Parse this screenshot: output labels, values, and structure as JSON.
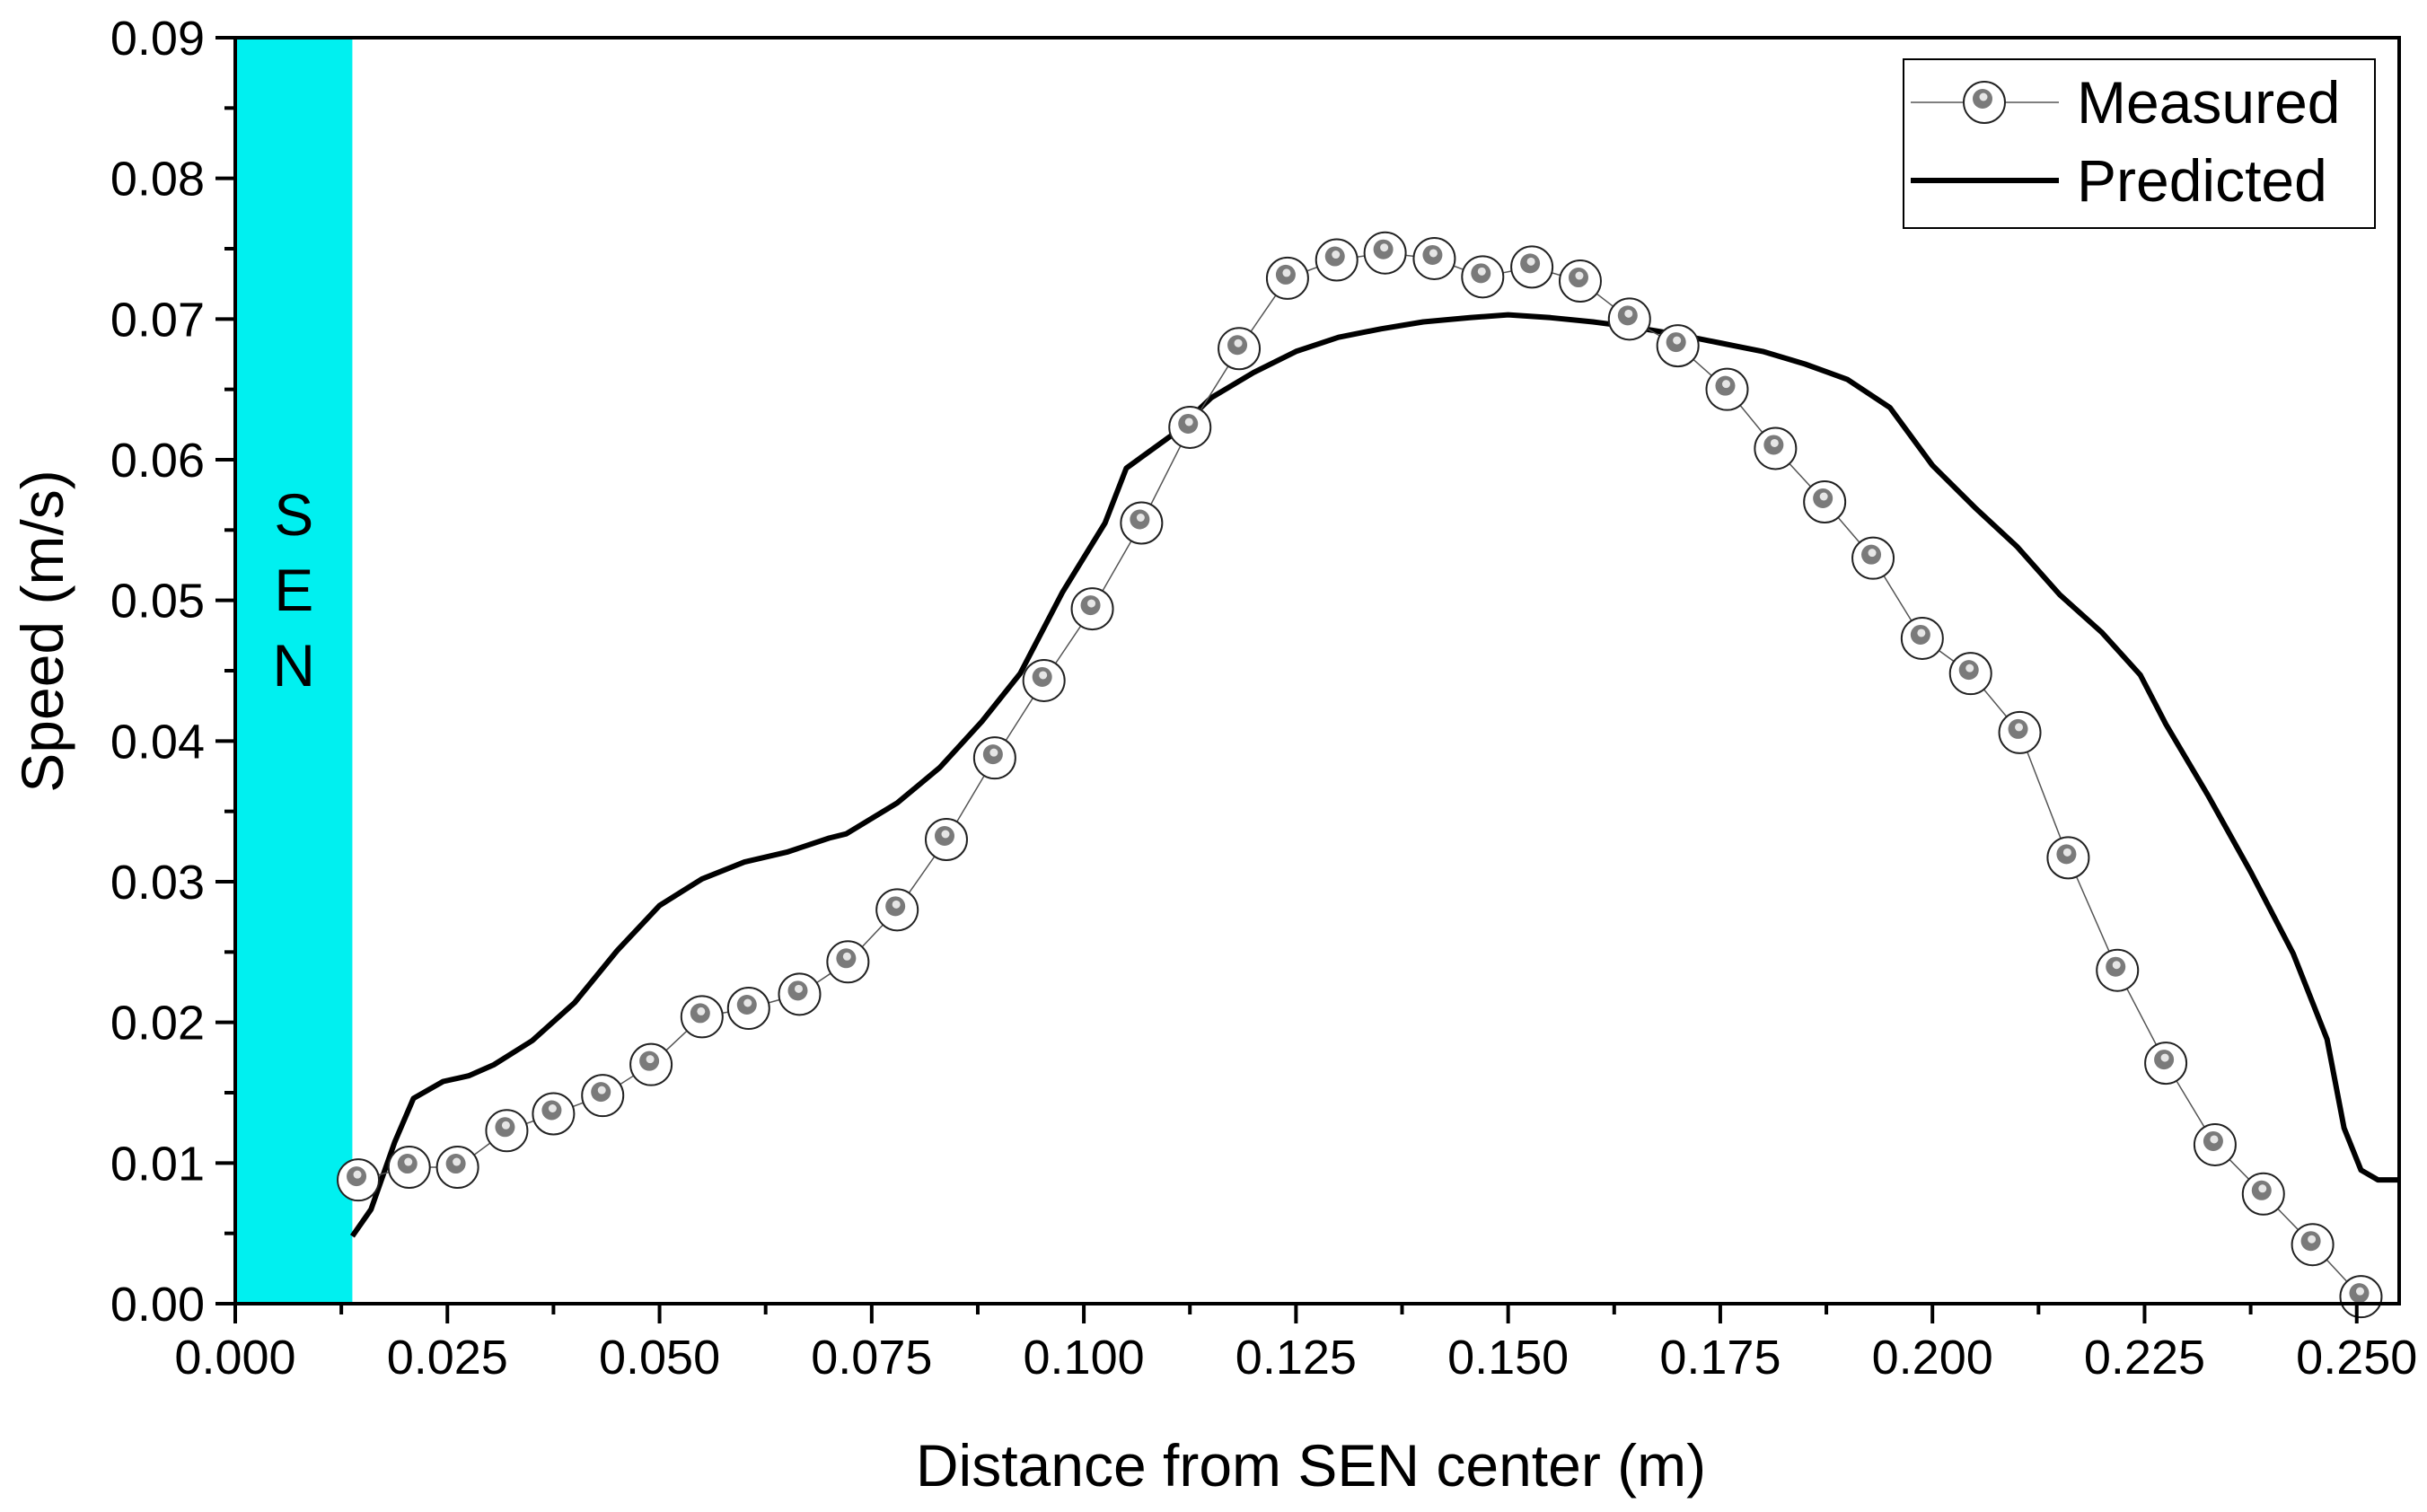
{
  "chart_data": {
    "type": "line",
    "title": "",
    "xlabel": "Distance from SEN center (m)",
    "ylabel": "Speed (m/s)",
    "xlim": [
      0.0,
      0.255
    ],
    "ylim": [
      0.0,
      0.09
    ],
    "xticks": [
      0.0,
      0.025,
      0.05,
      0.075,
      0.1,
      0.125,
      0.15,
      0.175,
      0.2,
      0.225,
      0.25
    ],
    "xtick_labels": [
      "0.000",
      "0.025",
      "0.050",
      "0.075",
      "0.100",
      "0.125",
      "0.150",
      "0.175",
      "0.200",
      "0.225",
      "0.250"
    ],
    "yticks": [
      0.0,
      0.01,
      0.02,
      0.03,
      0.04,
      0.05,
      0.06,
      0.07,
      0.08,
      0.09
    ],
    "ytick_labels": [
      "0.00",
      "0.01",
      "0.02",
      "0.03",
      "0.04",
      "0.05",
      "0.06",
      "0.07",
      "0.08",
      "0.09"
    ],
    "legend_position": "top-right",
    "sen_region": {
      "x_start": 0.0,
      "x_end": 0.0138,
      "label": [
        "S",
        "E",
        "N"
      ],
      "color": "#00f0f0"
    },
    "series": [
      {
        "name": "Measured",
        "style": "line-with-circle-markers",
        "color": "#555555",
        "x": [
          0.0145,
          0.0205,
          0.0262,
          0.032,
          0.0375,
          0.0433,
          0.049,
          0.055,
          0.0605,
          0.0665,
          0.0722,
          0.078,
          0.0838,
          0.0895,
          0.0953,
          0.101,
          0.1068,
          0.1125,
          0.1183,
          0.124,
          0.1298,
          0.1355,
          0.1413,
          0.147,
          0.1528,
          0.1585,
          0.1643,
          0.17,
          0.1758,
          0.1815,
          0.1873,
          0.193,
          0.1988,
          0.2045,
          0.2103,
          0.216,
          0.2218,
          0.2275,
          0.2333,
          0.239,
          0.2448,
          0.2505
        ],
        "values": [
          0.0088,
          0.0097,
          0.0097,
          0.0123,
          0.0135,
          0.0148,
          0.017,
          0.0204,
          0.021,
          0.022,
          0.0243,
          0.028,
          0.033,
          0.0388,
          0.0443,
          0.0494,
          0.0555,
          0.0623,
          0.0679,
          0.0729,
          0.0742,
          0.0747,
          0.0743,
          0.073,
          0.0737,
          0.0727,
          0.07,
          0.0681,
          0.065,
          0.0608,
          0.057,
          0.053,
          0.0473,
          0.0448,
          0.0406,
          0.0317,
          0.0237,
          0.0171,
          0.0113,
          0.0078,
          0.0042,
          0.0005
        ]
      },
      {
        "name": "Predicted",
        "style": "line",
        "color": "#000000",
        "x": [
          0.0138,
          0.016,
          0.0188,
          0.021,
          0.0245,
          0.0275,
          0.0305,
          0.035,
          0.04,
          0.045,
          0.05,
          0.055,
          0.06,
          0.065,
          0.07,
          0.072,
          0.078,
          0.083,
          0.088,
          0.0925,
          0.0975,
          0.1025,
          0.105,
          0.1105,
          0.115,
          0.12,
          0.125,
          0.13,
          0.135,
          0.14,
          0.1455,
          0.15,
          0.155,
          0.16,
          0.165,
          0.17,
          0.175,
          0.18,
          0.185,
          0.19,
          0.195,
          0.2,
          0.205,
          0.21,
          0.215,
          0.22,
          0.2245,
          0.2275,
          0.2325,
          0.2375,
          0.2425,
          0.2465,
          0.2485,
          0.2505,
          0.2525,
          0.255
        ],
        "values": [
          0.0048,
          0.0067,
          0.0115,
          0.0146,
          0.0158,
          0.0162,
          0.017,
          0.0187,
          0.0214,
          0.0251,
          0.0283,
          0.0302,
          0.0314,
          0.0321,
          0.0331,
          0.0334,
          0.0356,
          0.0381,
          0.0414,
          0.0448,
          0.0506,
          0.0555,
          0.0594,
          0.0618,
          0.0644,
          0.0662,
          0.0677,
          0.0687,
          0.0693,
          0.0698,
          0.0701,
          0.0703,
          0.0701,
          0.0698,
          0.0694,
          0.0689,
          0.0683,
          0.0677,
          0.0668,
          0.0657,
          0.0637,
          0.0596,
          0.0566,
          0.0538,
          0.0504,
          0.0477,
          0.0447,
          0.0412,
          0.0361,
          0.0307,
          0.0249,
          0.0188,
          0.0125,
          0.0095,
          0.0088,
          0.0088
        ]
      }
    ]
  }
}
